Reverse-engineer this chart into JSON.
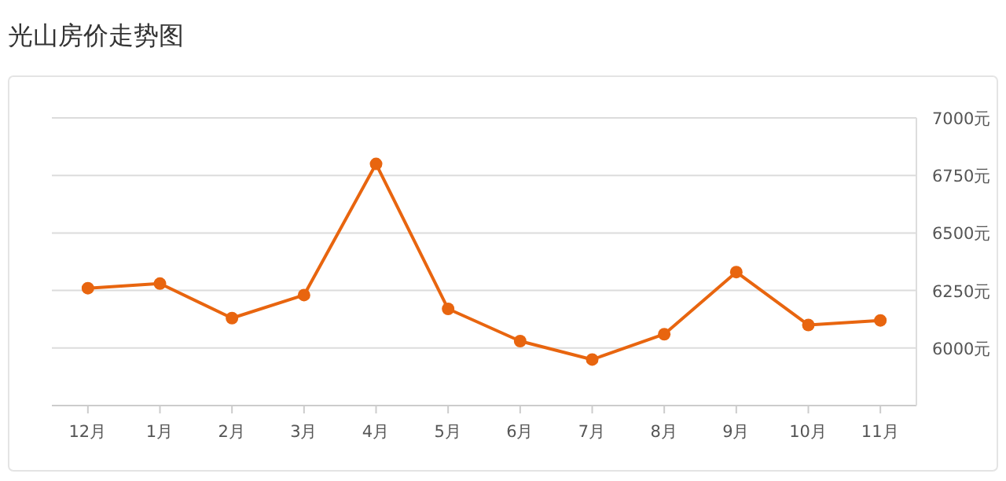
{
  "chart_data": {
    "type": "line",
    "title": "光山房价走势图",
    "categories": [
      "12月",
      "1月",
      "2月",
      "3月",
      "4月",
      "5月",
      "6月",
      "7月",
      "8月",
      "9月",
      "10月",
      "11月"
    ],
    "series": [
      {
        "color": "#e8650f",
        "values": [
          6260,
          6280,
          6130,
          6230,
          6800,
          6170,
          6030,
          5950,
          6060,
          6330,
          6100,
          6120
        ]
      }
    ],
    "ylim": [
      5750,
      7000
    ],
    "yticks": [
      {
        "value": 6000,
        "label": "6000元"
      },
      {
        "value": 6250,
        "label": "6250元"
      },
      {
        "value": 6500,
        "label": "6500元"
      },
      {
        "value": 6750,
        "label": "6750元"
      },
      {
        "value": 7000,
        "label": "7000元"
      }
    ],
    "grid": "y",
    "marker": "circle",
    "line_style": "solid"
  }
}
